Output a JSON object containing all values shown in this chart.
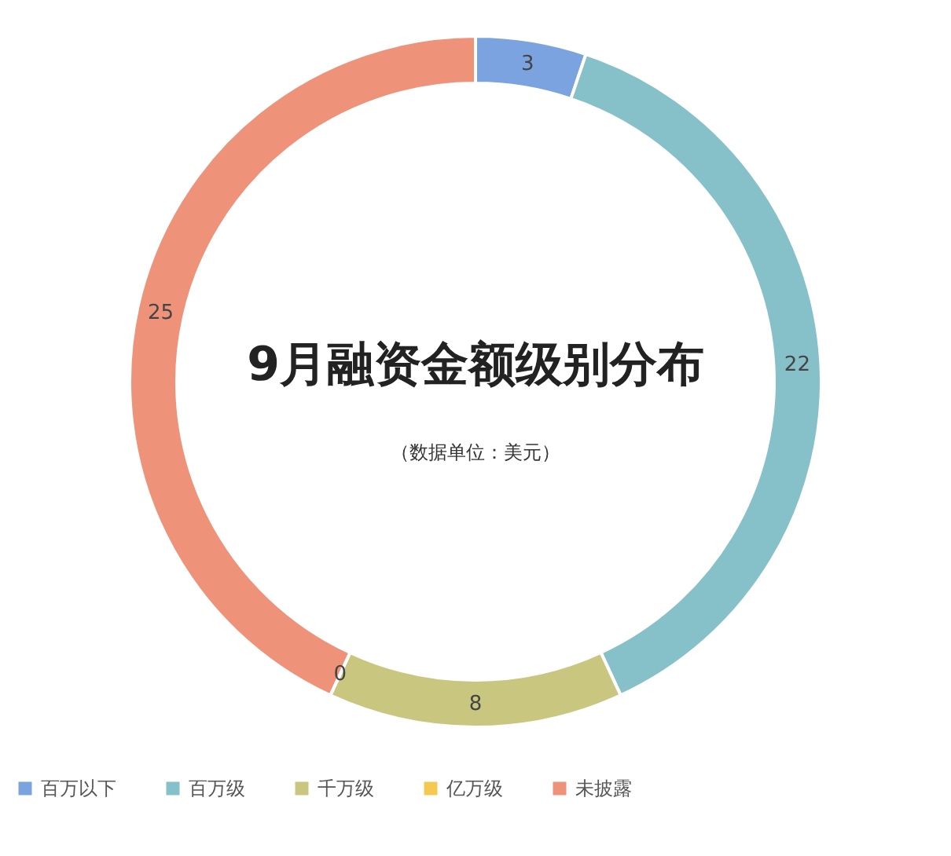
{
  "chart_data": {
    "type": "donut",
    "title": "9月融资金额级别分布",
    "subtitle": "（数据单位：美元）",
    "categories": [
      "百万以下",
      "百万级",
      "千万级",
      "亿万级",
      "未披露"
    ],
    "values": [
      3,
      22,
      8,
      0,
      25
    ],
    "colors": [
      "#7ba3e0",
      "#86c1c9",
      "#c9c77f",
      "#f5c951",
      "#ee937a"
    ],
    "value_labels": [
      "3",
      "22",
      "8",
      "0",
      "25"
    ],
    "legend": "bottom"
  }
}
